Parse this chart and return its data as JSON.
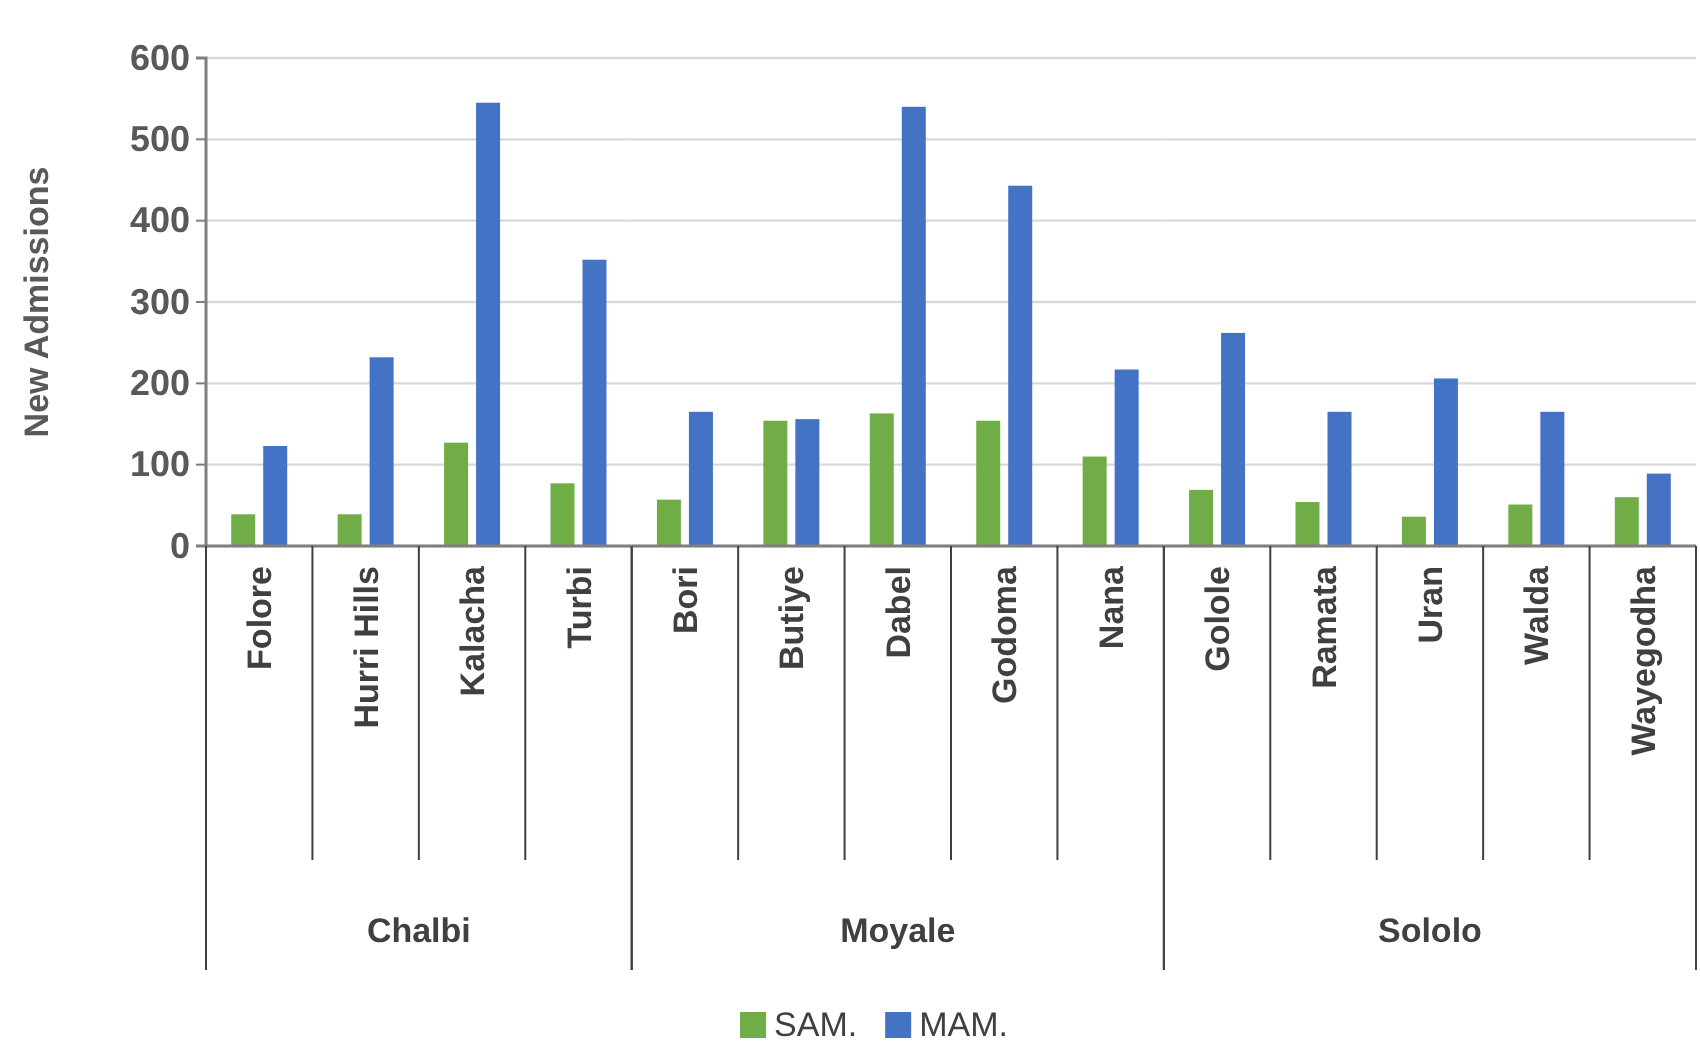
{
  "chart_data": [
    {
      "type": "bar",
      "ylabel": "New Admissions",
      "xlabel": "Chalbi",
      "categories": [
        "Folore",
        "Hurri Hills",
        "Kalacha",
        "Turbi"
      ],
      "series": [
        {
          "color": "#70ad47",
          "values": [
            39,
            39,
            127,
            77
          ]
        },
        {
          "color": "#4472c4",
          "values": [
            123,
            232,
            545,
            352
          ]
        }
      ],
      "ylim": [
        0,
        600
      ],
      "yticks": [
        0,
        100,
        200,
        300,
        400,
        500,
        600
      ],
      "grid": "y"
    },
    {
      "type": "bar",
      "xlabel": "Moyale",
      "categories": [
        "Bori",
        "Butiye",
        "Dabel",
        "Godoma",
        "Nana"
      ],
      "series": [
        {
          "name": "SAM.",
          "color": "#70ad47",
          "values": [
            57,
            154,
            163,
            154,
            110
          ]
        },
        {
          "name": "MAM.",
          "color": "#4472c4",
          "values": [
            165,
            156,
            540,
            443,
            217
          ]
        }
      ],
      "ylim": [
        0,
        600
      ],
      "yticks": [
        0,
        100,
        200,
        300,
        400,
        500,
        600
      ],
      "grid": "y",
      "tick_labels": "x",
      "legend": "bottom"
    },
    {
      "type": "bar",
      "xlabel": "Sololo",
      "categories": [
        "Golole",
        "Ramata",
        "Uran",
        "Walda",
        "Wayegodha"
      ],
      "series": [
        {
          "color": "#70ad47",
          "values": [
            69,
            54,
            36,
            51,
            60
          ]
        },
        {
          "color": "#4472c4",
          "values": [
            262,
            165,
            206,
            165,
            89
          ]
        }
      ],
      "ylim": [
        0,
        600
      ],
      "yticks": [
        0,
        100,
        200,
        300,
        400,
        500,
        600
      ],
      "grid": "y",
      "tick_labels": "x"
    }
  ]
}
